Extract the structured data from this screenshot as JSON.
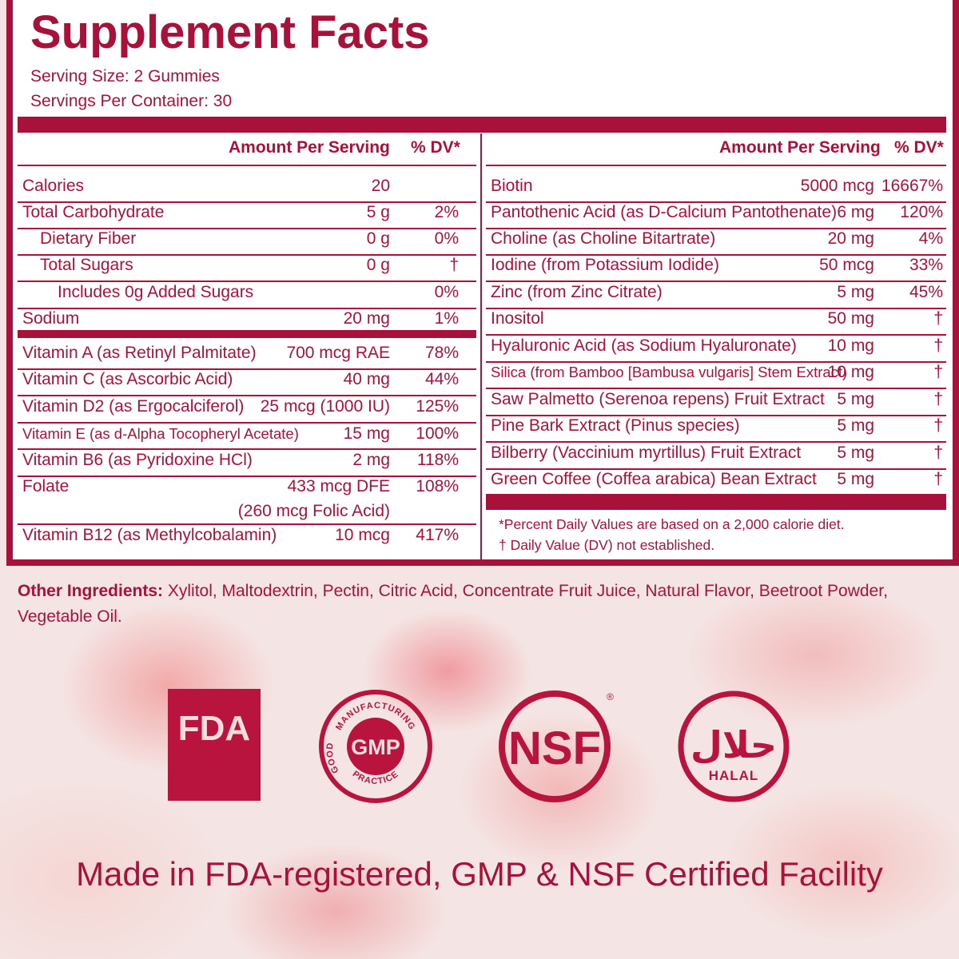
{
  "title": "Supplement Facts",
  "serving_size": "Serving Size: 2 Gummies",
  "servings_per_container": "Servings Per Container: 30",
  "header": {
    "amount": "Amount Per Serving",
    "dv": "% DV*"
  },
  "left_column": [
    {
      "name": "Calories",
      "amount": "20",
      "dv": ""
    },
    {
      "name": "Total Carbohydrate",
      "amount": "5 g",
      "dv": "2%"
    },
    {
      "name": "Dietary Fiber",
      "amount": "0 g",
      "dv": "0%"
    },
    {
      "name": "Total Sugars",
      "amount": "0 g",
      "dv": "†"
    },
    {
      "name": "Includes 0g Added Sugars",
      "amount": "",
      "dv": "0%"
    },
    {
      "name": "Sodium",
      "amount": "20 mg",
      "dv": "1%"
    },
    {
      "name": "Vitamin A (as Retinyl Palmitate)",
      "amount": "700 mcg RAE",
      "dv": "78%"
    },
    {
      "name": "Vitamin C (as Ascorbic Acid)",
      "amount": "40 mg",
      "dv": "44%"
    },
    {
      "name": "Vitamin D2 (as Ergocalciferol)",
      "amount": "25 mcg (1000 IU)",
      "dv": "125%"
    },
    {
      "name": "Vitamin E (as d-Alpha Tocopheryl Acetate)",
      "amount": "15 mg",
      "dv": "100%"
    },
    {
      "name": "Vitamin B6 (as Pyridoxine HCl)",
      "amount": "2 mg",
      "dv": "118%"
    },
    {
      "name": "Folate",
      "amount": "433 mcg DFE",
      "amount2": "(260 mcg Folic Acid)",
      "dv": "108%"
    },
    {
      "name": "Vitamin B12 (as Methylcobalamin)",
      "amount": "10 mcg",
      "dv": "417%"
    }
  ],
  "right_column": [
    {
      "name": "Biotin",
      "amount": "5000 mcg",
      "dv": "16667%"
    },
    {
      "name": "Pantothenic Acid (as D-Calcium Pantothenate)",
      "amount": "6 mg",
      "dv": "120%"
    },
    {
      "name": "Choline (as Choline Bitartrate)",
      "amount": "20 mg",
      "dv": "4%"
    },
    {
      "name": "Iodine (from Potassium Iodide)",
      "amount": "50 mcg",
      "dv": "33%"
    },
    {
      "name": "Zinc (from Zinc Citrate)",
      "amount": "5 mg",
      "dv": "45%"
    },
    {
      "name": "Inositol",
      "amount": "50 mg",
      "dv": "†"
    },
    {
      "name": "Hyaluronic Acid (as Sodium Hyaluronate)",
      "amount": "10 mg",
      "dv": "†"
    },
    {
      "name": "Silica (from Bamboo [Bambusa vulgaris] Stem Extract)",
      "amount": "10 mg",
      "dv": "†"
    },
    {
      "name": "Saw Palmetto (Serenoa repens) Fruit Extract",
      "amount": "5 mg",
      "dv": "†"
    },
    {
      "name": "Pine Bark Extract (Pinus species)",
      "amount": "5 mg",
      "dv": "†"
    },
    {
      "name": "Bilberry (Vaccinium myrtillus) Fruit Extract",
      "amount": "5 mg",
      "dv": "†"
    },
    {
      "name": "Green Coffee (Coffea arabica) Bean Extract",
      "amount": "5 mg",
      "dv": "†"
    }
  ],
  "footnotes": {
    "dv_note": "*Percent Daily Values are based on a 2,000 calorie diet.",
    "dagger_note": "† Daily Value (DV) not established."
  },
  "other_ingredients": {
    "label": "Other Ingredients:",
    "text": " Xylitol, Maltodextrin, Pectin, Citric Acid, Concentrate Fruit Juice, Natural Flavor, Beetroot Powder, Vegetable Oil."
  },
  "badges": {
    "fda": "FDA",
    "gmp": {
      "center": "GMP",
      "top_arc": "MANUFACTURING",
      "left_arc": "GOOD",
      "bottom_arc": "PRACTICE"
    },
    "nsf": {
      "text": "NSF",
      "mark": "®"
    },
    "halal": {
      "arabic": "حلال",
      "text": "HALAL"
    }
  },
  "facility_text": "Made in FDA-registered, GMP & NSF Certified Facility",
  "colors": {
    "brand": "#a8123a",
    "badge_fill": "#b8143e"
  }
}
